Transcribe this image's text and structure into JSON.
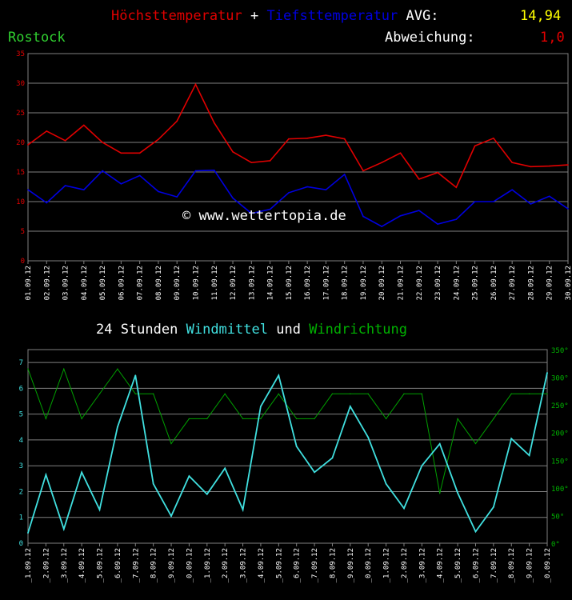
{
  "header": {
    "max_label": "Höchsttemperatur",
    "plus": "+",
    "min_label": "Tiefsttemperatur",
    "avg_label": "AVG:",
    "avg_value": "14,94",
    "location": "Rostock",
    "dev_label": "Abweichung:",
    "dev_value": "1,0",
    "watermark": "© www.wettertopia.de"
  },
  "wind_title": {
    "prefix": "24 Stunden",
    "mean": "Windmittel",
    "und": "und",
    "dir": "Windrichtung"
  },
  "colors": {
    "max": "#e00000",
    "min": "#0000e0",
    "wind": "#40e0e0",
    "dir": "#00a000",
    "avg": "#ffff00",
    "loc": "#30d030"
  },
  "chart_data": [
    {
      "type": "line",
      "categories": [
        "01.09.12",
        "02.09.12",
        "03.09.12",
        "04.09.12",
        "05.09.12",
        "06.09.12",
        "07.09.12",
        "08.09.12",
        "09.09.12",
        "10.09.12",
        "11.09.12",
        "12.09.12",
        "13.09.12",
        "14.09.12",
        "15.09.12",
        "16.09.12",
        "17.09.12",
        "18.09.12",
        "19.09.12",
        "20.09.12",
        "21.09.12",
        "22.09.12",
        "23.09.12",
        "24.09.12",
        "25.09.12",
        "26.09.12",
        "27.09.12",
        "28.09.12",
        "29.09.12",
        "30.09.12"
      ],
      "series": [
        {
          "name": "Höchsttemperatur",
          "values": [
            19.6,
            21.9,
            20.3,
            22.9,
            20.0,
            18.2,
            18.2,
            20.5,
            23.6,
            29.8,
            23.3,
            18.4,
            16.6,
            16.9,
            20.6,
            20.7,
            21.2,
            20.6,
            15.2,
            16.6,
            18.2,
            13.8,
            14.9,
            12.4,
            19.4,
            20.7,
            16.6,
            15.9,
            16.0,
            16.2
          ]
        },
        {
          "name": "Tiefsttemperatur",
          "values": [
            12.0,
            9.8,
            12.7,
            12.0,
            15.2,
            13.0,
            14.4,
            11.7,
            10.8,
            15.2,
            15.3,
            10.6,
            8.0,
            8.7,
            11.5,
            12.5,
            12.0,
            14.6,
            7.5,
            5.8,
            7.6,
            8.5,
            6.2,
            7.0,
            10.0,
            10.0,
            12.0,
            9.6,
            10.9,
            8.8
          ]
        }
      ],
      "ylim": [
        0,
        35
      ],
      "yticks": [
        0,
        5,
        10,
        15,
        20,
        25,
        30,
        35
      ],
      "grid": true
    },
    {
      "type": "line",
      "categories": [
        "01.09.12",
        "02.09.12",
        "03.09.12",
        "04.09.12",
        "05.09.12",
        "06.09.12",
        "07.09.12",
        "08.09.12",
        "09.09.12",
        "10.09.12",
        "11.09.12",
        "12.09.12",
        "13.09.12",
        "14.09.12",
        "15.09.12",
        "16.09.12",
        "17.09.12",
        "18.09.12",
        "19.09.12",
        "20.09.12",
        "21.09.12",
        "22.09.12",
        "23.09.12",
        "24.09.12",
        "25.09.12",
        "26.09.12",
        "27.09.12",
        "28.09.12",
        "29.09.12",
        "30.09.12"
      ],
      "tick_labels": [
        "_1.09.12",
        "_2.09.12",
        "_3.09.12",
        "_4.09.12",
        "_5.09.12",
        "_6.09.12",
        "_7.09.12",
        "_8.09.12",
        "_9.09.12",
        "_0.09.12",
        "_1.09.12",
        "_2.09.12",
        "_3.09.12",
        "_4.09.12",
        "_5.09.12",
        "_6.09.12",
        "_7.09.12",
        "_8.09.12",
        "_9.09.12",
        "_0.09.12",
        "_1.09.12",
        "_2.09.12",
        "_3.09.12",
        "_4.09.12",
        "_5.09.12",
        "_6.09.12",
        "_7.09.12",
        "_8.09.12",
        "_9.09.12",
        "_0.09.12"
      ],
      "series": [
        {
          "name": "Windmittel",
          "axis": "left",
          "values": [
            0.4,
            2.65,
            0.55,
            2.75,
            1.3,
            4.5,
            6.5,
            2.3,
            1.05,
            2.6,
            1.9,
            2.9,
            1.3,
            5.3,
            6.5,
            3.75,
            2.75,
            3.3,
            5.3,
            4.1,
            2.3,
            1.35,
            3.0,
            3.85,
            1.95,
            0.45,
            1.4,
            4.05,
            3.4,
            6.6
          ]
        },
        {
          "name": "Windrichtung",
          "axis": "right",
          "values": [
            315,
            225,
            315,
            225,
            270,
            315,
            270,
            270,
            180,
            225,
            225,
            270,
            225,
            225,
            270,
            225,
            225,
            270,
            270,
            270,
            225,
            270,
            270,
            90,
            225,
            180,
            225,
            270,
            270,
            270
          ]
        }
      ],
      "ylim_left": [
        0,
        7.5
      ],
      "yticks_left": [
        0,
        1,
        2,
        3,
        4,
        5,
        6,
        7
      ],
      "ylim_right": [
        0,
        350
      ],
      "yticks_right": [
        "0°",
        "50°",
        "100°",
        "150°",
        "200°",
        "250°",
        "300°",
        "350°"
      ],
      "grid": true
    }
  ]
}
